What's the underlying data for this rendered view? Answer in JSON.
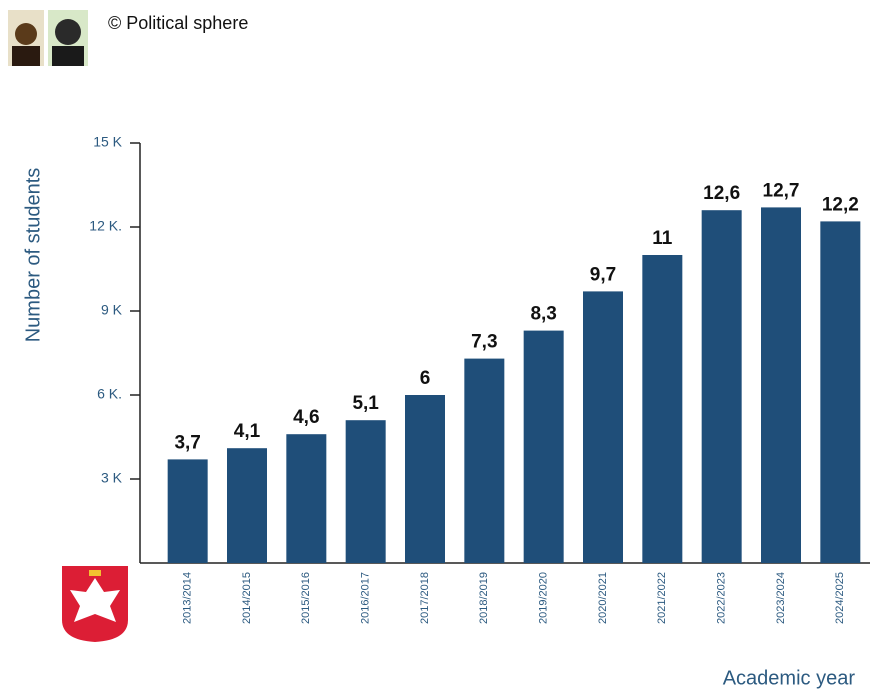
{
  "source": "© Political sphere",
  "chart_data": {
    "type": "bar",
    "y_label": "Number of students",
    "x_label": "Academic year",
    "categories": [
      "2013/2014",
      "2014/2015",
      "2015/2016",
      "2016/2017",
      "2017/2018",
      "2018/2019",
      "2019/2020",
      "2020/2021",
      "2021/2022",
      "2022/2023",
      "2023/2024",
      "2024/2025"
    ],
    "values": [
      3.7,
      4.1,
      4.6,
      5.1,
      6,
      7.3,
      8.3,
      9.7,
      11,
      12.6,
      12.7,
      12.2
    ],
    "value_labels": [
      "3,7",
      "4,1",
      "4,6",
      "5,1",
      "6",
      "7,3",
      "8,3",
      "9,7",
      "11",
      "12,6",
      "12,7",
      "12,2"
    ],
    "color": "#1f4e79",
    "ylim": [
      0,
      15
    ],
    "yticks": [
      {
        "value": 3,
        "label": "3 K"
      },
      {
        "value": 6,
        "label": "6 K."
      },
      {
        "value": 9,
        "label": "9 K"
      },
      {
        "value": 12,
        "label": "12 K."
      },
      {
        "value": 15,
        "label": "15 K"
      }
    ]
  }
}
